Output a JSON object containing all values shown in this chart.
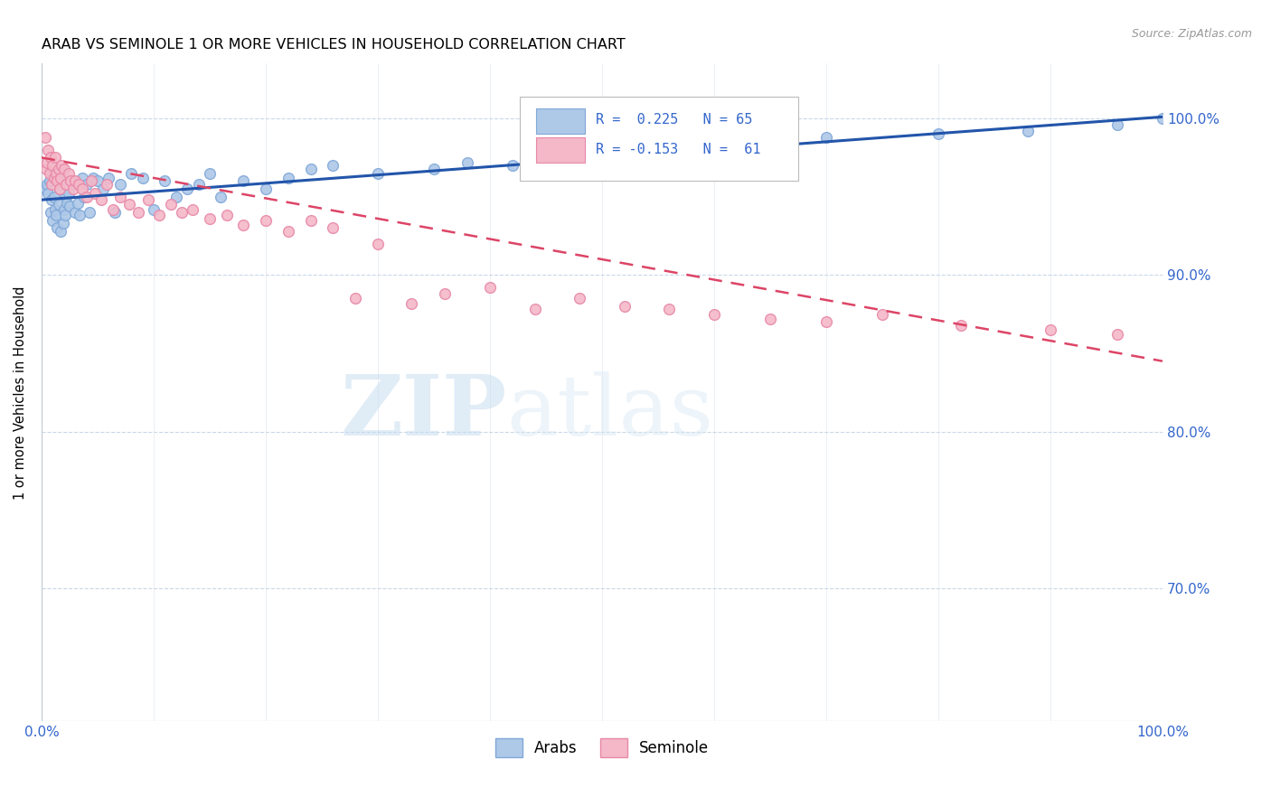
{
  "title": "ARAB VS SEMINOLE 1 OR MORE VEHICLES IN HOUSEHOLD CORRELATION CHART",
  "source": "Source: ZipAtlas.com",
  "ylabel": "1 or more Vehicles in Household",
  "ytick_labels": [
    "70.0%",
    "80.0%",
    "90.0%",
    "100.0%"
  ],
  "ytick_values": [
    0.7,
    0.8,
    0.9,
    1.0
  ],
  "xlim": [
    0.0,
    1.0
  ],
  "ylim": [
    0.615,
    1.035
  ],
  "arab_color": "#aec8e8",
  "arab_edge_color": "#80a8d8",
  "seminole_color": "#f4b8c8",
  "seminole_edge_color": "#e888a8",
  "arab_line_color": "#2255aa",
  "seminole_line_color": "#dd4466",
  "R_arab": 0.225,
  "N_arab": 65,
  "R_seminole": -0.153,
  "N_seminole": 61,
  "legend_label_arab": "Arabs",
  "legend_label_seminole": "Seminole",
  "watermark_zip": "ZIP",
  "watermark_atlas": "atlas",
  "marker_size": 72,
  "arab_x": [
    0.003,
    0.005,
    0.006,
    0.007,
    0.008,
    0.009,
    0.01,
    0.01,
    0.011,
    0.012,
    0.013,
    0.014,
    0.015,
    0.016,
    0.017,
    0.018,
    0.019,
    0.02,
    0.021,
    0.022,
    0.023,
    0.024,
    0.025,
    0.027,
    0.028,
    0.03,
    0.032,
    0.034,
    0.036,
    0.038,
    0.04,
    0.043,
    0.046,
    0.05,
    0.055,
    0.06,
    0.065,
    0.07,
    0.08,
    0.09,
    0.1,
    0.11,
    0.12,
    0.13,
    0.14,
    0.15,
    0.16,
    0.18,
    0.2,
    0.22,
    0.24,
    0.26,
    0.3,
    0.35,
    0.38,
    0.42,
    0.46,
    0.5,
    0.55,
    0.65,
    0.7,
    0.8,
    0.88,
    0.96,
    1.0
  ],
  "arab_y": [
    0.955,
    0.958,
    0.952,
    0.96,
    0.94,
    0.948,
    0.935,
    0.965,
    0.95,
    0.942,
    0.938,
    0.93,
    0.945,
    0.955,
    0.928,
    0.96,
    0.933,
    0.942,
    0.938,
    0.95,
    0.946,
    0.952,
    0.944,
    0.96,
    0.958,
    0.94,
    0.946,
    0.938,
    0.962,
    0.95,
    0.958,
    0.94,
    0.962,
    0.96,
    0.955,
    0.962,
    0.94,
    0.958,
    0.965,
    0.962,
    0.942,
    0.96,
    0.95,
    0.955,
    0.958,
    0.965,
    0.95,
    0.96,
    0.955,
    0.962,
    0.968,
    0.97,
    0.965,
    0.968,
    0.972,
    0.97,
    0.975,
    0.978,
    0.98,
    0.985,
    0.988,
    0.99,
    0.992,
    0.996,
    1.0
  ],
  "seminole_x": [
    0.003,
    0.004,
    0.005,
    0.006,
    0.007,
    0.008,
    0.009,
    0.01,
    0.011,
    0.012,
    0.013,
    0.014,
    0.015,
    0.016,
    0.017,
    0.018,
    0.02,
    0.022,
    0.024,
    0.026,
    0.028,
    0.03,
    0.033,
    0.036,
    0.04,
    0.044,
    0.048,
    0.053,
    0.058,
    0.064,
    0.07,
    0.078,
    0.086,
    0.095,
    0.105,
    0.115,
    0.125,
    0.135,
    0.15,
    0.165,
    0.18,
    0.2,
    0.22,
    0.24,
    0.26,
    0.28,
    0.3,
    0.33,
    0.36,
    0.4,
    0.44,
    0.48,
    0.52,
    0.56,
    0.6,
    0.65,
    0.7,
    0.75,
    0.82,
    0.9,
    0.96
  ],
  "seminole_y": [
    0.988,
    0.968,
    0.972,
    0.98,
    0.965,
    0.975,
    0.958,
    0.97,
    0.962,
    0.975,
    0.965,
    0.96,
    0.968,
    0.955,
    0.962,
    0.97,
    0.968,
    0.958,
    0.965,
    0.96,
    0.955,
    0.96,
    0.958,
    0.955,
    0.95,
    0.96,
    0.952,
    0.948,
    0.958,
    0.942,
    0.95,
    0.945,
    0.94,
    0.948,
    0.938,
    0.945,
    0.94,
    0.942,
    0.936,
    0.938,
    0.932,
    0.935,
    0.928,
    0.935,
    0.93,
    0.885,
    0.92,
    0.882,
    0.888,
    0.892,
    0.878,
    0.885,
    0.88,
    0.878,
    0.875,
    0.872,
    0.87,
    0.875,
    0.868,
    0.865,
    0.862
  ]
}
